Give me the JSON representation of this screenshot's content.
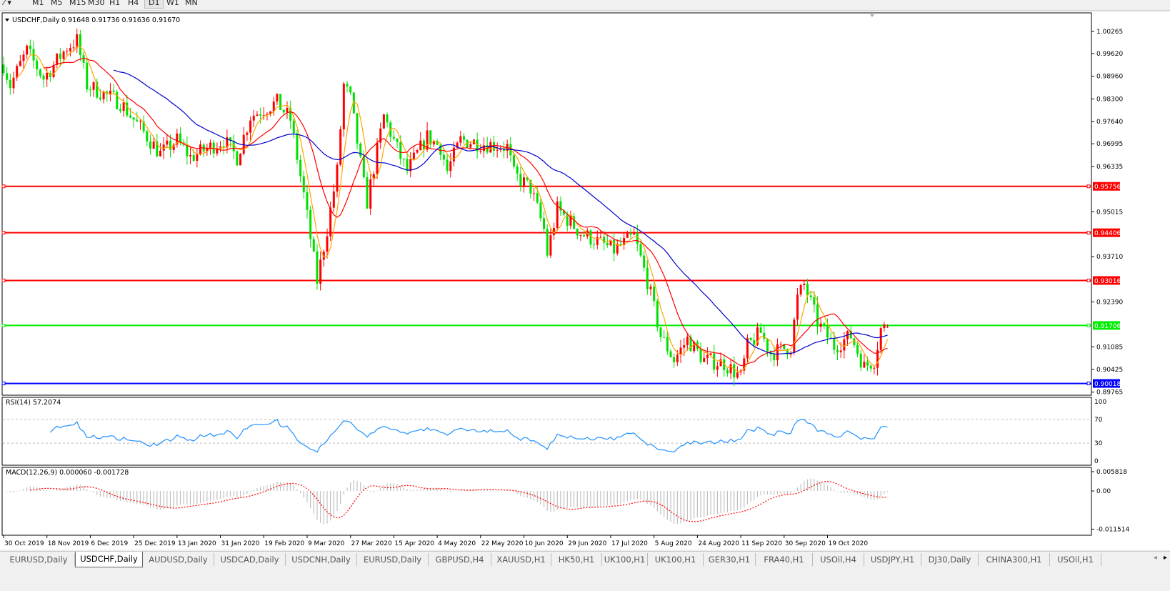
{
  "toolbar": {
    "timeframes": [
      "M1",
      "M5",
      "M15",
      "M30",
      "H1",
      "H4",
      "D1",
      "W1",
      "MN"
    ],
    "active_timeframe": "D1"
  },
  "chart": {
    "symbol_label": "USDCHF,Daily",
    "ohlc_label": "0.91648 0.91736 0.91636 0.91670",
    "colors": {
      "bull_candle": "#ff0000",
      "bear_candle": "#00e000",
      "ma_fast": "#ffa500",
      "ma_mid": "#ff0000",
      "ma_slow": "#0000cc",
      "rsi": "#1e90ff",
      "macd_hist": "#c0c0c0",
      "macd_signal": "#ff0000"
    },
    "price_ticks": [
      "1.00265",
      "0.99620",
      "0.98960",
      "0.98300",
      "0.97640",
      "0.96995",
      "0.96335",
      "0.95015",
      "0.93710",
      "0.92390",
      "0.91085",
      "0.90425",
      "0.89765"
    ],
    "horizontal_lines": [
      {
        "price": "0.95756",
        "color": "#ff0000"
      },
      {
        "price": "0.94406",
        "color": "#ff0000"
      },
      {
        "price": "0.93016",
        "color": "#ff0000"
      },
      {
        "price": "0.91706",
        "color": "#00ee00"
      },
      {
        "price": "0.90018",
        "color": "#0000ff"
      }
    ],
    "date_ticks": [
      "30 Oct 2019",
      "18 Nov 2019",
      "6 Dec 2019",
      "25 Dec 2019",
      "13 Jan 2020",
      "31 Jan 2020",
      "19 Feb 2020",
      "9 Mar 2020",
      "27 Mar 2020",
      "15 Apr 2020",
      "4 May 2020",
      "22 May 2020",
      "10 Jun 2020",
      "29 Jun 2020",
      "17 Jul 2020",
      "5 Aug 2020",
      "24 Aug 2020",
      "11 Sep 2020",
      "30 Sep 2020",
      "19 Oct 2020"
    ],
    "last_bar": {
      "open": 0.91648,
      "high": 0.91736,
      "low": 0.91636,
      "close": 0.9167
    },
    "close_path": [
      [
        "2019-10-30",
        0.993
      ],
      [
        "2019-11-01",
        0.987
      ],
      [
        "2019-11-08",
        0.997
      ],
      [
        "2019-11-15",
        0.989
      ],
      [
        "2019-11-26",
        0.998
      ],
      [
        "2019-11-29",
        1.0
      ],
      [
        "2019-12-04",
        0.987
      ],
      [
        "2019-12-18",
        0.982
      ],
      [
        "2019-12-30",
        0.972
      ],
      [
        "2020-01-03",
        0.967
      ],
      [
        "2020-01-10",
        0.971
      ],
      [
        "2020-01-16",
        0.966
      ],
      [
        "2020-01-30",
        0.971
      ],
      [
        "2020-02-05",
        0.966
      ],
      [
        "2020-02-11",
        0.978
      ],
      [
        "2020-02-21",
        0.982
      ],
      [
        "2020-02-27",
        0.977
      ],
      [
        "2020-03-04",
        0.955
      ],
      [
        "2020-03-10",
        0.93
      ],
      [
        "2020-03-13",
        0.945
      ],
      [
        "2020-03-18",
        0.962
      ],
      [
        "2020-03-20",
        0.987
      ],
      [
        "2020-03-24",
        0.983
      ],
      [
        "2020-03-30",
        0.958
      ],
      [
        "2020-03-31",
        0.953
      ],
      [
        "2020-04-07",
        0.978
      ],
      [
        "2020-04-14",
        0.966
      ],
      [
        "2020-04-16",
        0.962
      ],
      [
        "2020-04-24",
        0.972
      ],
      [
        "2020-04-30",
        0.969
      ],
      [
        "2020-05-04",
        0.962
      ],
      [
        "2020-05-08",
        0.971
      ],
      [
        "2020-05-19",
        0.97
      ],
      [
        "2020-05-28",
        0.969
      ],
      [
        "2020-06-01",
        0.961
      ],
      [
        "2020-06-08",
        0.957
      ],
      [
        "2020-06-12",
        0.945
      ],
      [
        "2020-06-15",
        0.938
      ],
      [
        "2020-06-18",
        0.951
      ],
      [
        "2020-06-29",
        0.944
      ],
      [
        "2020-07-13",
        0.939
      ],
      [
        "2020-07-21",
        0.943
      ],
      [
        "2020-07-27",
        0.93
      ],
      [
        "2020-07-31",
        0.914
      ],
      [
        "2020-08-06",
        0.907
      ],
      [
        "2020-08-12",
        0.913
      ],
      [
        "2020-08-19",
        0.907
      ],
      [
        "2020-08-27",
        0.906
      ],
      [
        "2020-09-03",
        0.902
      ],
      [
        "2020-09-07",
        0.911
      ],
      [
        "2020-09-11",
        0.915
      ],
      [
        "2020-09-16",
        0.909
      ],
      [
        "2020-09-24",
        0.911
      ],
      [
        "2020-09-28",
        0.925
      ],
      [
        "2020-09-30",
        0.929
      ],
      [
        "2020-10-06",
        0.918
      ],
      [
        "2020-10-13",
        0.911
      ],
      [
        "2020-10-20",
        0.914
      ],
      [
        "2020-10-26",
        0.905
      ],
      [
        "2020-10-29",
        0.907
      ],
      [
        "2020-11-02",
        0.916
      ],
      [
        "2020-11-04",
        0.9167
      ]
    ],
    "rsi": {
      "label": "RSI(14) 57.2074",
      "ticks": [
        "100",
        "70",
        "30",
        "0"
      ],
      "levels": [
        70,
        30
      ]
    },
    "macd": {
      "label": "MACD(12,26,9) 0.000060 -0.001728",
      "ticks": [
        "0.005818",
        "0.00",
        "-0.011514"
      ]
    }
  },
  "tabs": [
    {
      "label": "EURUSD,Daily"
    },
    {
      "label": "USDCHF,Daily",
      "active": true
    },
    {
      "label": "AUDUSD,Daily"
    },
    {
      "label": "USDCAD,Daily"
    },
    {
      "label": "USDCNH,Daily"
    },
    {
      "label": "EURUSD,Daily"
    },
    {
      "label": "GBPUSD,H4"
    },
    {
      "label": "XAUUSD,H1"
    },
    {
      "label": "HK50,H1"
    },
    {
      "label": "UK100,H1"
    },
    {
      "label": "UK100,H1"
    },
    {
      "label": "GER30,H1"
    },
    {
      "label": "FRA40,H1"
    },
    {
      "label": "USOil,H4"
    },
    {
      "label": "USDJPY,H1"
    },
    {
      "label": "DJ30,Daily"
    },
    {
      "label": "CHINA300,H1"
    },
    {
      "label": "USOil,H1"
    }
  ],
  "tab_scroll": {
    "left": "◂",
    "right": "▸"
  }
}
